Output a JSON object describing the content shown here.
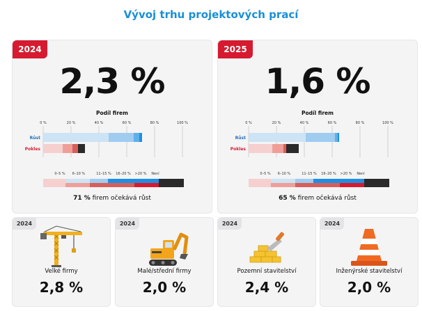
{
  "title": "Vývoj trhu projektových prací",
  "colors": {
    "title": "#1a8fd6",
    "badge_red": "#d61a2f",
    "growth": [
      "#cde3f6",
      "#9fccef",
      "#5fb0ea",
      "#1f8fe3"
    ],
    "decline": [
      "#f5d0cf",
      "#ef9f98",
      "#d75f5b",
      "#2a2a2a"
    ],
    "legend": [
      "#f5d0cf",
      "#cde3f6",
      "#9fccef",
      "#ef9f98",
      "#d75f5b",
      "#d61a2f",
      "#1f8fe3",
      "#2a2a2a"
    ]
  },
  "axis_ticks": [
    "0 %",
    "20 %",
    "40 %",
    "60 %",
    "80 %",
    "100 %"
  ],
  "legend_labels": [
    "0–5 %",
    "6–10 %",
    "11–15 %",
    "16–20 %",
    ">20 %",
    "Není"
  ],
  "podil_label": "Podíl firem",
  "summary_suffix": "firem očekává růst",
  "cards": [
    {
      "year": "2024",
      "value": "2,3 %",
      "summary_pct": "71 %"
    },
    {
      "year": "2025",
      "value": "1,6 %",
      "summary_pct": "65 %"
    }
  ],
  "segments": [
    {
      "name": "Velké firmy",
      "year": "2024",
      "value": "2,8 %",
      "icon": "crane-icon"
    },
    {
      "name": "Malé/střední firmy",
      "year": "2024",
      "value": "2,0 %",
      "icon": "excavator-icon"
    },
    {
      "name": "Pozemní stavitelství",
      "year": "2024",
      "value": "2,4 %",
      "icon": "bricks-trowel-icon"
    },
    {
      "name": "Inženýrské stavitelství",
      "year": "2024",
      "value": "2,0 %",
      "icon": "traffic-cone-icon"
    }
  ],
  "chart_data": [
    {
      "type": "bar",
      "title": "Podíl firem",
      "xlim": [
        0,
        100
      ],
      "categories": [
        "Růst",
        "Pokles"
      ],
      "series": [
        {
          "name": "0–5 %",
          "values": [
            47,
            14
          ]
        },
        {
          "name": "6–10 %",
          "values": [
            18,
            7
          ]
        },
        {
          "name": "11–15 %",
          "values": [
            4,
            4
          ]
        },
        {
          "name": "16–20 %",
          "values": [
            2,
            0
          ]
        },
        {
          "name": ">20 %",
          "values": [
            0,
            0
          ]
        },
        {
          "name": "Není",
          "values": [
            0,
            5
          ]
        }
      ]
    },
    {
      "type": "bar",
      "title": "Podíl firem",
      "xlim": [
        0,
        100
      ],
      "categories": [
        "Růst",
        "Pokles"
      ],
      "series": [
        {
          "name": "0–5 %",
          "values": [
            41,
            17
          ]
        },
        {
          "name": "6–10 %",
          "values": [
            21,
            8
          ]
        },
        {
          "name": "11–15 %",
          "values": [
            2,
            2
          ]
        },
        {
          "name": "16–20 %",
          "values": [
            1,
            0
          ]
        },
        {
          "name": ">20 %",
          "values": [
            0,
            0
          ]
        },
        {
          "name": "Není",
          "values": [
            0,
            9
          ]
        }
      ]
    }
  ]
}
